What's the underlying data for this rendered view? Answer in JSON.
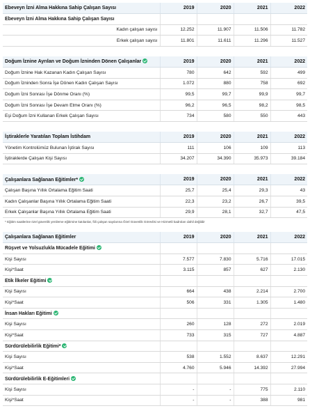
{
  "years": [
    "2019",
    "2020",
    "2021",
    "2022"
  ],
  "parental": {
    "title": "Ebeveyn İzni Alma Hakkına Sahip Çalışan Sayısı",
    "subtitle": "Ebeveyn İzni Alma Hakkına Sahip Çalışan Sayısı",
    "rows": [
      {
        "label": "Kadın çalışan sayısı",
        "values": [
          "12.252",
          "11.907",
          "11.506",
          "11.782"
        ]
      },
      {
        "label": "Erkek çalışan sayısı",
        "values": [
          "11.801",
          "11.611",
          "11.296",
          "11.527"
        ]
      }
    ]
  },
  "maternity": {
    "title": "Doğum İznine Ayrılan ve Doğum İzninden Dönen Çalışanlar",
    "rows": [
      {
        "label": "Doğum İznine Hak Kazanan Kadın Çalışan Sayısı",
        "values": [
          "780",
          "642",
          "592",
          "499"
        ]
      },
      {
        "label": "Doğum İzninden Sonra İşe Dönen Kadın Çalışan Sayısı",
        "values": [
          "1.072",
          "880",
          "758",
          "692"
        ]
      },
      {
        "label": "Doğum İzni Sonrası İşe Dönme Oranı (%)",
        "values": [
          "99,5",
          "99,7",
          "99,9",
          "99,7"
        ]
      },
      {
        "label": "Doğum İzni Sonrası İşe Devam Etme Oranı (%)",
        "values": [
          "96,2",
          "96,5",
          "98,2",
          "98,5"
        ]
      },
      {
        "label": "Eşi Doğum İzni Kullanan Erkek Çalışan Sayısı",
        "values": [
          "734",
          "580",
          "550",
          "443"
        ]
      }
    ]
  },
  "subsidiaries": {
    "title": "İştiraklerle Yaratılan Toplam İstihdam",
    "rows": [
      {
        "label": "Yönetim Kontrolümüz Bulunan İştirak Sayısı",
        "values": [
          "111",
          "106",
          "109",
          "113"
        ]
      },
      {
        "label": "İştiraklerde Çalışan Kişi Sayısı",
        "values": [
          "34.207",
          "34.390",
          "35.973",
          "39.184"
        ]
      }
    ]
  },
  "training_avg": {
    "title": "Çalışanlara Sağlanan Eğitimler*",
    "rows": [
      {
        "label": "Çalışan Başına Yıllık Ortalama Eğitim Saati",
        "values": [
          "25,7",
          "25,4",
          "29,3",
          "43"
        ]
      },
      {
        "label": "Kadın Çalışanlar Başına Yıllık Ortalama Eğitim Saati",
        "values": [
          "22,3",
          "23,2",
          "26,7",
          "39,5"
        ]
      },
      {
        "label": "Erkek Çalışanlar Başına Yıllık Ortalama Eğitim Saati",
        "values": [
          "29,9",
          "28,1",
          "32,7",
          "47,5"
        ]
      }
    ],
    "note": "* Eğitim saatlerine özel güvenlik yenileme eğitimine katılanlar, fiili çalışan sayılarına Özel Güvenlik Görevlisi ve Hizmetli kadroları dahil değildir"
  },
  "training_detail": {
    "title": "Çalışanlara Sağlanan Eğitimler",
    "groups": [
      {
        "title": "Rüşvet ve Yolsuzlukla Mücadele Eğitimi",
        "rows": [
          {
            "label": "Kişi Sayısı",
            "values": [
              "7.577",
              "7.830",
              "5.716",
              "17.015"
            ]
          },
          {
            "label": "Kişi*Saat",
            "values": [
              "3.115",
              "857",
              "627",
              "2.130"
            ]
          }
        ]
      },
      {
        "title": "Etik İlkeler Eğitimi",
        "rows": [
          {
            "label": "Kişi Sayısı",
            "values": [
              "664",
              "438",
              "2.214",
              "2.700"
            ]
          },
          {
            "label": "Kişi*Saat",
            "values": [
              "506",
              "331",
              "1.305",
              "1.480"
            ]
          }
        ]
      },
      {
        "title": "İnsan Hakları Eğitimi",
        "rows": [
          {
            "label": "Kişi Sayısı",
            "values": [
              "260",
              "128",
              "272",
              "2.019"
            ]
          },
          {
            "label": "Kişi*Saat",
            "values": [
              "733",
              "315",
              "727",
              "4.887"
            ]
          }
        ]
      },
      {
        "title": "Sürdürülebilirlik Eğitimi*",
        "rows": [
          {
            "label": "Kişi Sayısı",
            "values": [
              "538",
              "1.552",
              "8.637",
              "12.291"
            ]
          },
          {
            "label": "Kişi*Saat",
            "values": [
              "4.760",
              "5.946",
              "14.392",
              "27.994"
            ]
          }
        ]
      },
      {
        "title": "Sürdürülebilirlik E-Eğitimleri",
        "rows": [
          {
            "label": "Kişi Sayısı",
            "values": [
              "-",
              "-",
              "775",
              "2.110"
            ]
          },
          {
            "label": "Kişi*Saat",
            "values": [
              "-",
              "-",
              "388",
              "981"
            ]
          }
        ]
      }
    ]
  }
}
